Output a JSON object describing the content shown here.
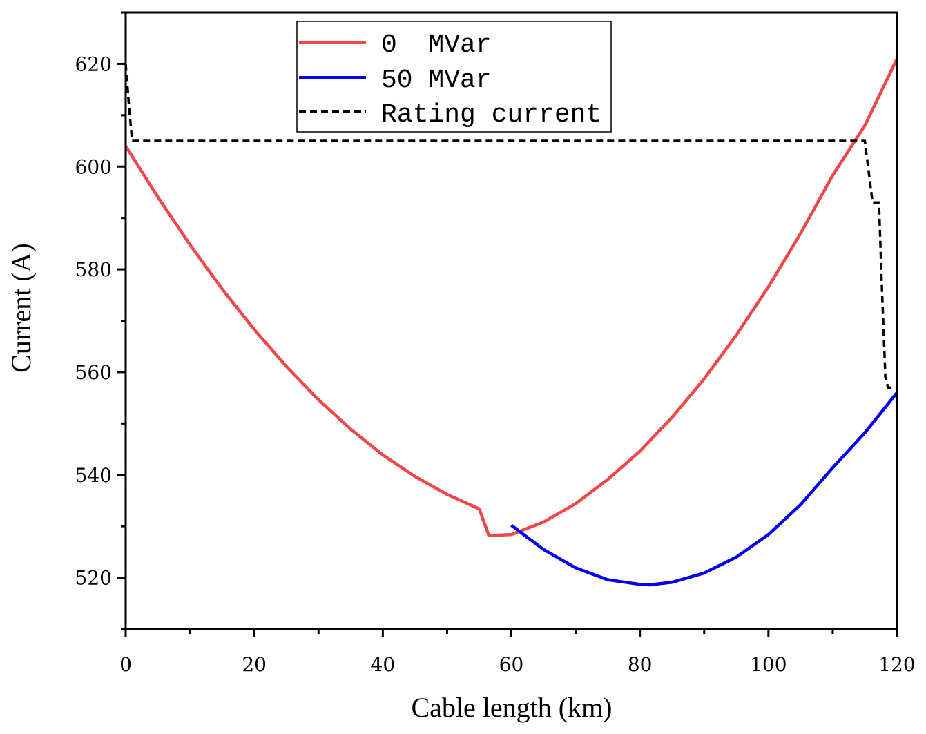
{
  "chart_data": {
    "type": "line",
    "xlabel": "Cable length (km)",
    "ylabel": "Current (A)",
    "xlim": [
      0,
      120
    ],
    "ylim": [
      510,
      630
    ],
    "xticks": [
      0,
      20,
      40,
      60,
      80,
      100,
      120
    ],
    "yticks": [
      520,
      540,
      560,
      580,
      600,
      620
    ],
    "legend_position": "top-center",
    "series": [
      {
        "name": "0  MVar",
        "color": "#f04848",
        "style": "solid",
        "x": [
          0,
          5,
          10,
          15,
          20,
          25,
          30,
          35,
          40,
          45,
          50,
          55,
          56.5,
          60,
          65,
          70,
          75,
          80,
          85,
          90,
          95,
          100,
          105,
          110,
          115,
          120
        ],
        "y": [
          604,
          594.1,
          584.8,
          576.2,
          568.3,
          561.1,
          554.6,
          548.9,
          543.9,
          539.7,
          536.2,
          533.4,
          528.2,
          528.4,
          530.8,
          534.4,
          539.1,
          544.6,
          551.2,
          558.7,
          567.2,
          576.6,
          587.0,
          598.3,
          608.0,
          621
        ]
      },
      {
        "name": "50 MVar",
        "color": "#0000ee",
        "style": "solid",
        "x": [
          60,
          65,
          70,
          75,
          80,
          81.5,
          85,
          90,
          95,
          100,
          105,
          110,
          115,
          120
        ],
        "y": [
          530.2,
          525.5,
          521.9,
          519.6,
          518.7,
          518.6,
          519.1,
          520.9,
          524.0,
          528.4,
          534.2,
          541.4,
          548.2,
          556
        ]
      },
      {
        "name": "Rating current",
        "color": "#000000",
        "style": "dashed",
        "x": [
          0,
          0.5,
          1.0,
          5,
          10,
          20,
          30,
          40,
          50,
          60,
          70,
          80,
          90,
          100,
          110,
          115.0,
          115.5,
          116.2,
          117.2,
          117.6,
          118.2,
          118.6,
          119.2,
          120
        ],
        "y": [
          620,
          612,
          605,
          605,
          605,
          605,
          605,
          605,
          605,
          605,
          605,
          605,
          605,
          605,
          605,
          605,
          600,
          593,
          593,
          578,
          559,
          557,
          557,
          557
        ]
      }
    ]
  }
}
